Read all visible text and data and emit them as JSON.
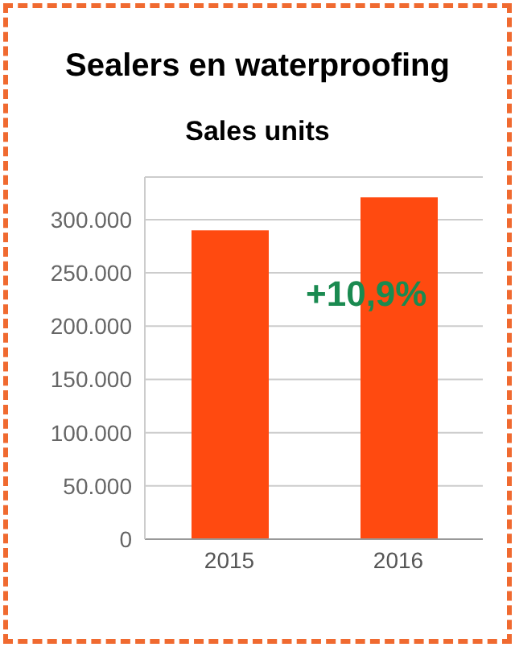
{
  "chart_data": {
    "type": "bar",
    "title": "Sealers en waterproofing",
    "subtitle": "Sales units",
    "categories": [
      "2015",
      "2016"
    ],
    "values": [
      290000,
      321000
    ],
    "color": "#ff4a10",
    "ylim": [
      0,
      340000
    ],
    "yticks": [
      {
        "value": 0,
        "label": "0"
      },
      {
        "value": 50000,
        "label": "50.000"
      },
      {
        "value": 100000,
        "label": "100.000"
      },
      {
        "value": 150000,
        "label": "150.000"
      },
      {
        "value": 200000,
        "label": "200.000"
      },
      {
        "value": 250000,
        "label": "250.000"
      },
      {
        "value": 300000,
        "label": "300.000"
      }
    ],
    "grid": "y",
    "annotations": [
      "+10,9%"
    ]
  }
}
